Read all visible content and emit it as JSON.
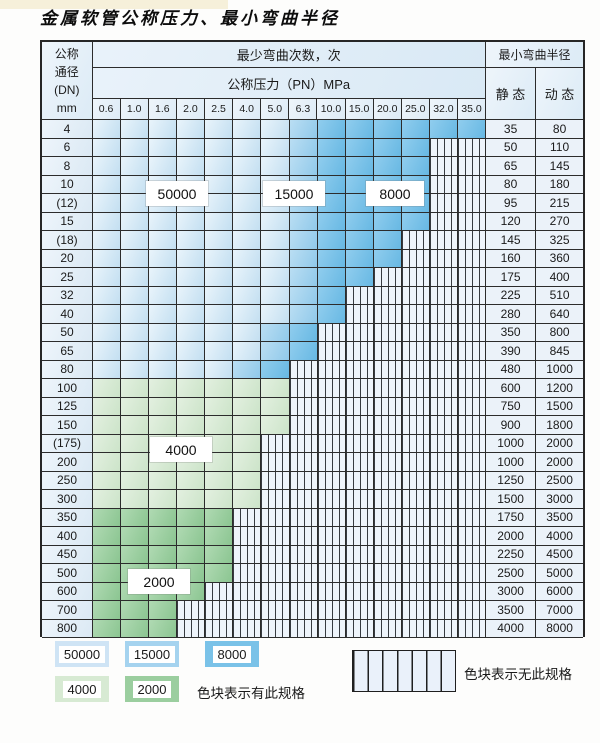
{
  "title": "金属软管公称压力、最小弯曲半径",
  "table": {
    "header": {
      "dn_label_lines": [
        "公称",
        "通径",
        "(DN)",
        "mm"
      ],
      "bend_count_label": "最少弯曲次数，次",
      "pressure_label": "公称压力（PN）MPa",
      "radius_label": "最小弯曲半径",
      "static_label": "静 态",
      "dynamic_label": "动 态",
      "pressures": [
        "0.6",
        "1.0",
        "1.6",
        "2.0",
        "2.5",
        "4.0",
        "5.0",
        "6.3",
        "10.0",
        "15.0",
        "20.0",
        "25.0",
        "32.0",
        "35.0"
      ]
    },
    "bend_regions": {
      "b1": "50000",
      "b2": "15000",
      "b3": "8000",
      "g1": "4000",
      "g2": "2000",
      "x": "无此规格"
    },
    "rows": [
      {
        "dn": "4",
        "cells": [
          "b1",
          "b1",
          "b1",
          "b1",
          "b1",
          "b1",
          "b1",
          "b2",
          "b3",
          "b3",
          "b3",
          "b3",
          "b3",
          "b3"
        ],
        "static": "35",
        "dynamic": "80"
      },
      {
        "dn": "6",
        "cells": [
          "b1",
          "b1",
          "b1",
          "b1",
          "b1",
          "b1",
          "b1",
          "b2",
          "b3",
          "b3",
          "b3",
          "b3",
          "x",
          "x"
        ],
        "static": "50",
        "dynamic": "110"
      },
      {
        "dn": "8",
        "cells": [
          "b1",
          "b1",
          "b1",
          "b1",
          "b1",
          "b1",
          "b1",
          "b2",
          "b3",
          "b3",
          "b3",
          "b3",
          "x",
          "x"
        ],
        "static": "65",
        "dynamic": "145"
      },
      {
        "dn": "10",
        "cells": [
          "b1",
          "b1",
          "b1",
          "b1",
          "b1",
          "b1",
          "b1",
          "b2",
          "b3",
          "b3",
          "b3",
          "b3",
          "x",
          "x"
        ],
        "static": "80",
        "dynamic": "180"
      },
      {
        "dn": "(12)",
        "cells": [
          "b1",
          "b1",
          "b1",
          "b1",
          "b1",
          "b1",
          "b1",
          "b2",
          "b3",
          "b3",
          "b3",
          "b3",
          "x",
          "x"
        ],
        "static": "95",
        "dynamic": "215"
      },
      {
        "dn": "15",
        "cells": [
          "b1",
          "b1",
          "b1",
          "b1",
          "b1",
          "b1",
          "b1",
          "b2",
          "b3",
          "b3",
          "b3",
          "b3",
          "x",
          "x"
        ],
        "static": "120",
        "dynamic": "270"
      },
      {
        "dn": "(18)",
        "cells": [
          "b1",
          "b1",
          "b1",
          "b1",
          "b1",
          "b1",
          "b1",
          "b2",
          "b3",
          "b3",
          "b3",
          "x",
          "x",
          "x"
        ],
        "static": "145",
        "dynamic": "325"
      },
      {
        "dn": "20",
        "cells": [
          "b1",
          "b1",
          "b1",
          "b1",
          "b1",
          "b1",
          "b1",
          "b2",
          "b3",
          "b3",
          "b3",
          "x",
          "x",
          "x"
        ],
        "static": "160",
        "dynamic": "360"
      },
      {
        "dn": "25",
        "cells": [
          "b1",
          "b1",
          "b1",
          "b1",
          "b1",
          "b1",
          "b1",
          "b2",
          "b3",
          "b3",
          "x",
          "x",
          "x",
          "x"
        ],
        "static": "175",
        "dynamic": "400"
      },
      {
        "dn": "32",
        "cells": [
          "b1",
          "b1",
          "b1",
          "b1",
          "b1",
          "b1",
          "b1",
          "b2",
          "b3",
          "x",
          "x",
          "x",
          "x",
          "x"
        ],
        "static": "225",
        "dynamic": "510"
      },
      {
        "dn": "40",
        "cells": [
          "b1",
          "b1",
          "b1",
          "b1",
          "b1",
          "b1",
          "b1",
          "b2",
          "b3",
          "x",
          "x",
          "x",
          "x",
          "x"
        ],
        "static": "280",
        "dynamic": "640"
      },
      {
        "dn": "50",
        "cells": [
          "b1",
          "b1",
          "b1",
          "b1",
          "b1",
          "b1",
          "b2",
          "b3",
          "x",
          "x",
          "x",
          "x",
          "x",
          "x"
        ],
        "static": "350",
        "dynamic": "800"
      },
      {
        "dn": "65",
        "cells": [
          "b1",
          "b1",
          "b1",
          "b1",
          "b1",
          "b1",
          "b2",
          "b3",
          "x",
          "x",
          "x",
          "x",
          "x",
          "x"
        ],
        "static": "390",
        "dynamic": "845"
      },
      {
        "dn": "80",
        "cells": [
          "b1",
          "b1",
          "b1",
          "b1",
          "b1",
          "b2",
          "b3",
          "x",
          "x",
          "x",
          "x",
          "x",
          "x",
          "x"
        ],
        "static": "480",
        "dynamic": "1000"
      },
      {
        "dn": "100",
        "cells": [
          "g1",
          "g1",
          "g1",
          "g1",
          "g1",
          "g1",
          "g1",
          "x",
          "x",
          "x",
          "x",
          "x",
          "x",
          "x"
        ],
        "static": "600",
        "dynamic": "1200"
      },
      {
        "dn": "125",
        "cells": [
          "g1",
          "g1",
          "g1",
          "g1",
          "g1",
          "g1",
          "g1",
          "x",
          "x",
          "x",
          "x",
          "x",
          "x",
          "x"
        ],
        "static": "750",
        "dynamic": "1500"
      },
      {
        "dn": "150",
        "cells": [
          "g1",
          "g1",
          "g1",
          "g1",
          "g1",
          "g1",
          "g1",
          "x",
          "x",
          "x",
          "x",
          "x",
          "x",
          "x"
        ],
        "static": "900",
        "dynamic": "1800"
      },
      {
        "dn": "(175)",
        "cells": [
          "g1",
          "g1",
          "g1",
          "g1",
          "g1",
          "g1",
          "x",
          "x",
          "x",
          "x",
          "x",
          "x",
          "x",
          "x"
        ],
        "static": "1000",
        "dynamic": "2000"
      },
      {
        "dn": "200",
        "cells": [
          "g1",
          "g1",
          "g1",
          "g1",
          "g1",
          "g1",
          "x",
          "x",
          "x",
          "x",
          "x",
          "x",
          "x",
          "x"
        ],
        "static": "1000",
        "dynamic": "2000"
      },
      {
        "dn": "250",
        "cells": [
          "g1",
          "g1",
          "g1",
          "g1",
          "g1",
          "g1",
          "x",
          "x",
          "x",
          "x",
          "x",
          "x",
          "x",
          "x"
        ],
        "static": "1250",
        "dynamic": "2500"
      },
      {
        "dn": "300",
        "cells": [
          "g1",
          "g1",
          "g1",
          "g1",
          "g1",
          "g1",
          "x",
          "x",
          "x",
          "x",
          "x",
          "x",
          "x",
          "x"
        ],
        "static": "1500",
        "dynamic": "3000"
      },
      {
        "dn": "350",
        "cells": [
          "g2",
          "g2",
          "g2",
          "g2",
          "g2",
          "x",
          "x",
          "x",
          "x",
          "x",
          "x",
          "x",
          "x",
          "x"
        ],
        "static": "1750",
        "dynamic": "3500"
      },
      {
        "dn": "400",
        "cells": [
          "g2",
          "g2",
          "g2",
          "g2",
          "g2",
          "x",
          "x",
          "x",
          "x",
          "x",
          "x",
          "x",
          "x",
          "x"
        ],
        "static": "2000",
        "dynamic": "4000"
      },
      {
        "dn": "450",
        "cells": [
          "g2",
          "g2",
          "g2",
          "g2",
          "g2",
          "x",
          "x",
          "x",
          "x",
          "x",
          "x",
          "x",
          "x",
          "x"
        ],
        "static": "2250",
        "dynamic": "4500"
      },
      {
        "dn": "500",
        "cells": [
          "g2",
          "g2",
          "g2",
          "g2",
          "g2",
          "x",
          "x",
          "x",
          "x",
          "x",
          "x",
          "x",
          "x",
          "x"
        ],
        "static": "2500",
        "dynamic": "5000"
      },
      {
        "dn": "600",
        "cells": [
          "g2",
          "g2",
          "g2",
          "g2",
          "x",
          "x",
          "x",
          "x",
          "x",
          "x",
          "x",
          "x",
          "x",
          "x"
        ],
        "static": "3000",
        "dynamic": "6000"
      },
      {
        "dn": "700",
        "cells": [
          "g2",
          "g2",
          "g2",
          "x",
          "x",
          "x",
          "x",
          "x",
          "x",
          "x",
          "x",
          "x",
          "x",
          "x"
        ],
        "static": "3500",
        "dynamic": "7000"
      },
      {
        "dn": "800",
        "cells": [
          "g2",
          "g2",
          "g2",
          "x",
          "x",
          "x",
          "x",
          "x",
          "x",
          "x",
          "x",
          "x",
          "x",
          "x"
        ],
        "static": "4000",
        "dynamic": "8000"
      }
    ]
  },
  "region_labels": {
    "l50000": "50000",
    "l15000": "15000",
    "l8000": "8000",
    "l4000": "4000",
    "l2000": "2000"
  },
  "legend": {
    "swatches": [
      {
        "label": "50000",
        "type": "b1"
      },
      {
        "label": "15000",
        "type": "b2"
      },
      {
        "label": "8000",
        "type": "b3"
      },
      {
        "label": "4000",
        "type": "g1"
      },
      {
        "label": "2000",
        "type": "g2"
      }
    ],
    "available_note": "色块表示有此规格",
    "unavailable_note": "色块表示无此规格"
  },
  "colors": {
    "band_50000": "#cfe4f5",
    "band_15000": "#a5d3ef",
    "band_8000": "#7ac2e8",
    "band_4000": "#d7ead3",
    "band_2000": "#9bce9f",
    "grid_line": "#2c2c2c"
  }
}
